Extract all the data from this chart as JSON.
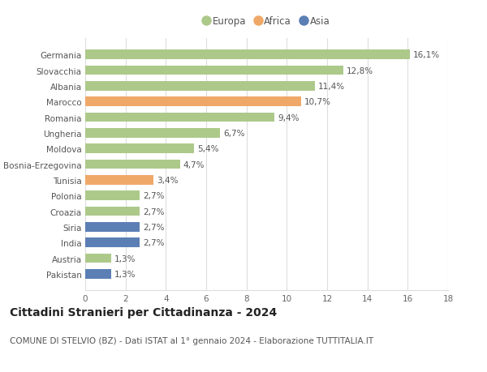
{
  "categories": [
    "Pakistan",
    "Austria",
    "India",
    "Siria",
    "Croazia",
    "Polonia",
    "Tunisia",
    "Bosnia-Erzegovina",
    "Moldova",
    "Ungheria",
    "Romania",
    "Marocco",
    "Albania",
    "Slovacchia",
    "Germania"
  ],
  "values": [
    1.3,
    1.3,
    2.7,
    2.7,
    2.7,
    2.7,
    3.4,
    4.7,
    5.4,
    6.7,
    9.4,
    10.7,
    11.4,
    12.8,
    16.1
  ],
  "labels": [
    "1,3%",
    "1,3%",
    "2,7%",
    "2,7%",
    "2,7%",
    "2,7%",
    "3,4%",
    "4,7%",
    "5,4%",
    "6,7%",
    "9,4%",
    "10,7%",
    "11,4%",
    "12,8%",
    "16,1%"
  ],
  "continents": [
    "Asia",
    "Europa",
    "Asia",
    "Asia",
    "Europa",
    "Europa",
    "Africa",
    "Europa",
    "Europa",
    "Europa",
    "Europa",
    "Africa",
    "Europa",
    "Europa",
    "Europa"
  ],
  "colors": {
    "Europa": "#adc98a",
    "Africa": "#f0a868",
    "Asia": "#5b7fb5"
  },
  "legend_order": [
    "Europa",
    "Africa",
    "Asia"
  ],
  "xlim": [
    0,
    18
  ],
  "xticks": [
    0,
    2,
    4,
    6,
    8,
    10,
    12,
    14,
    16,
    18
  ],
  "title": "Cittadini Stranieri per Cittadinanza - 2024",
  "subtitle": "COMUNE DI STELVIO (BZ) - Dati ISTAT al 1° gennaio 2024 - Elaborazione TUTTITALIA.IT",
  "bg_color": "#ffffff",
  "grid_color": "#dddddd",
  "bar_height": 0.6,
  "title_fontsize": 10,
  "subtitle_fontsize": 7.5,
  "label_fontsize": 7.5,
  "tick_fontsize": 7.5
}
